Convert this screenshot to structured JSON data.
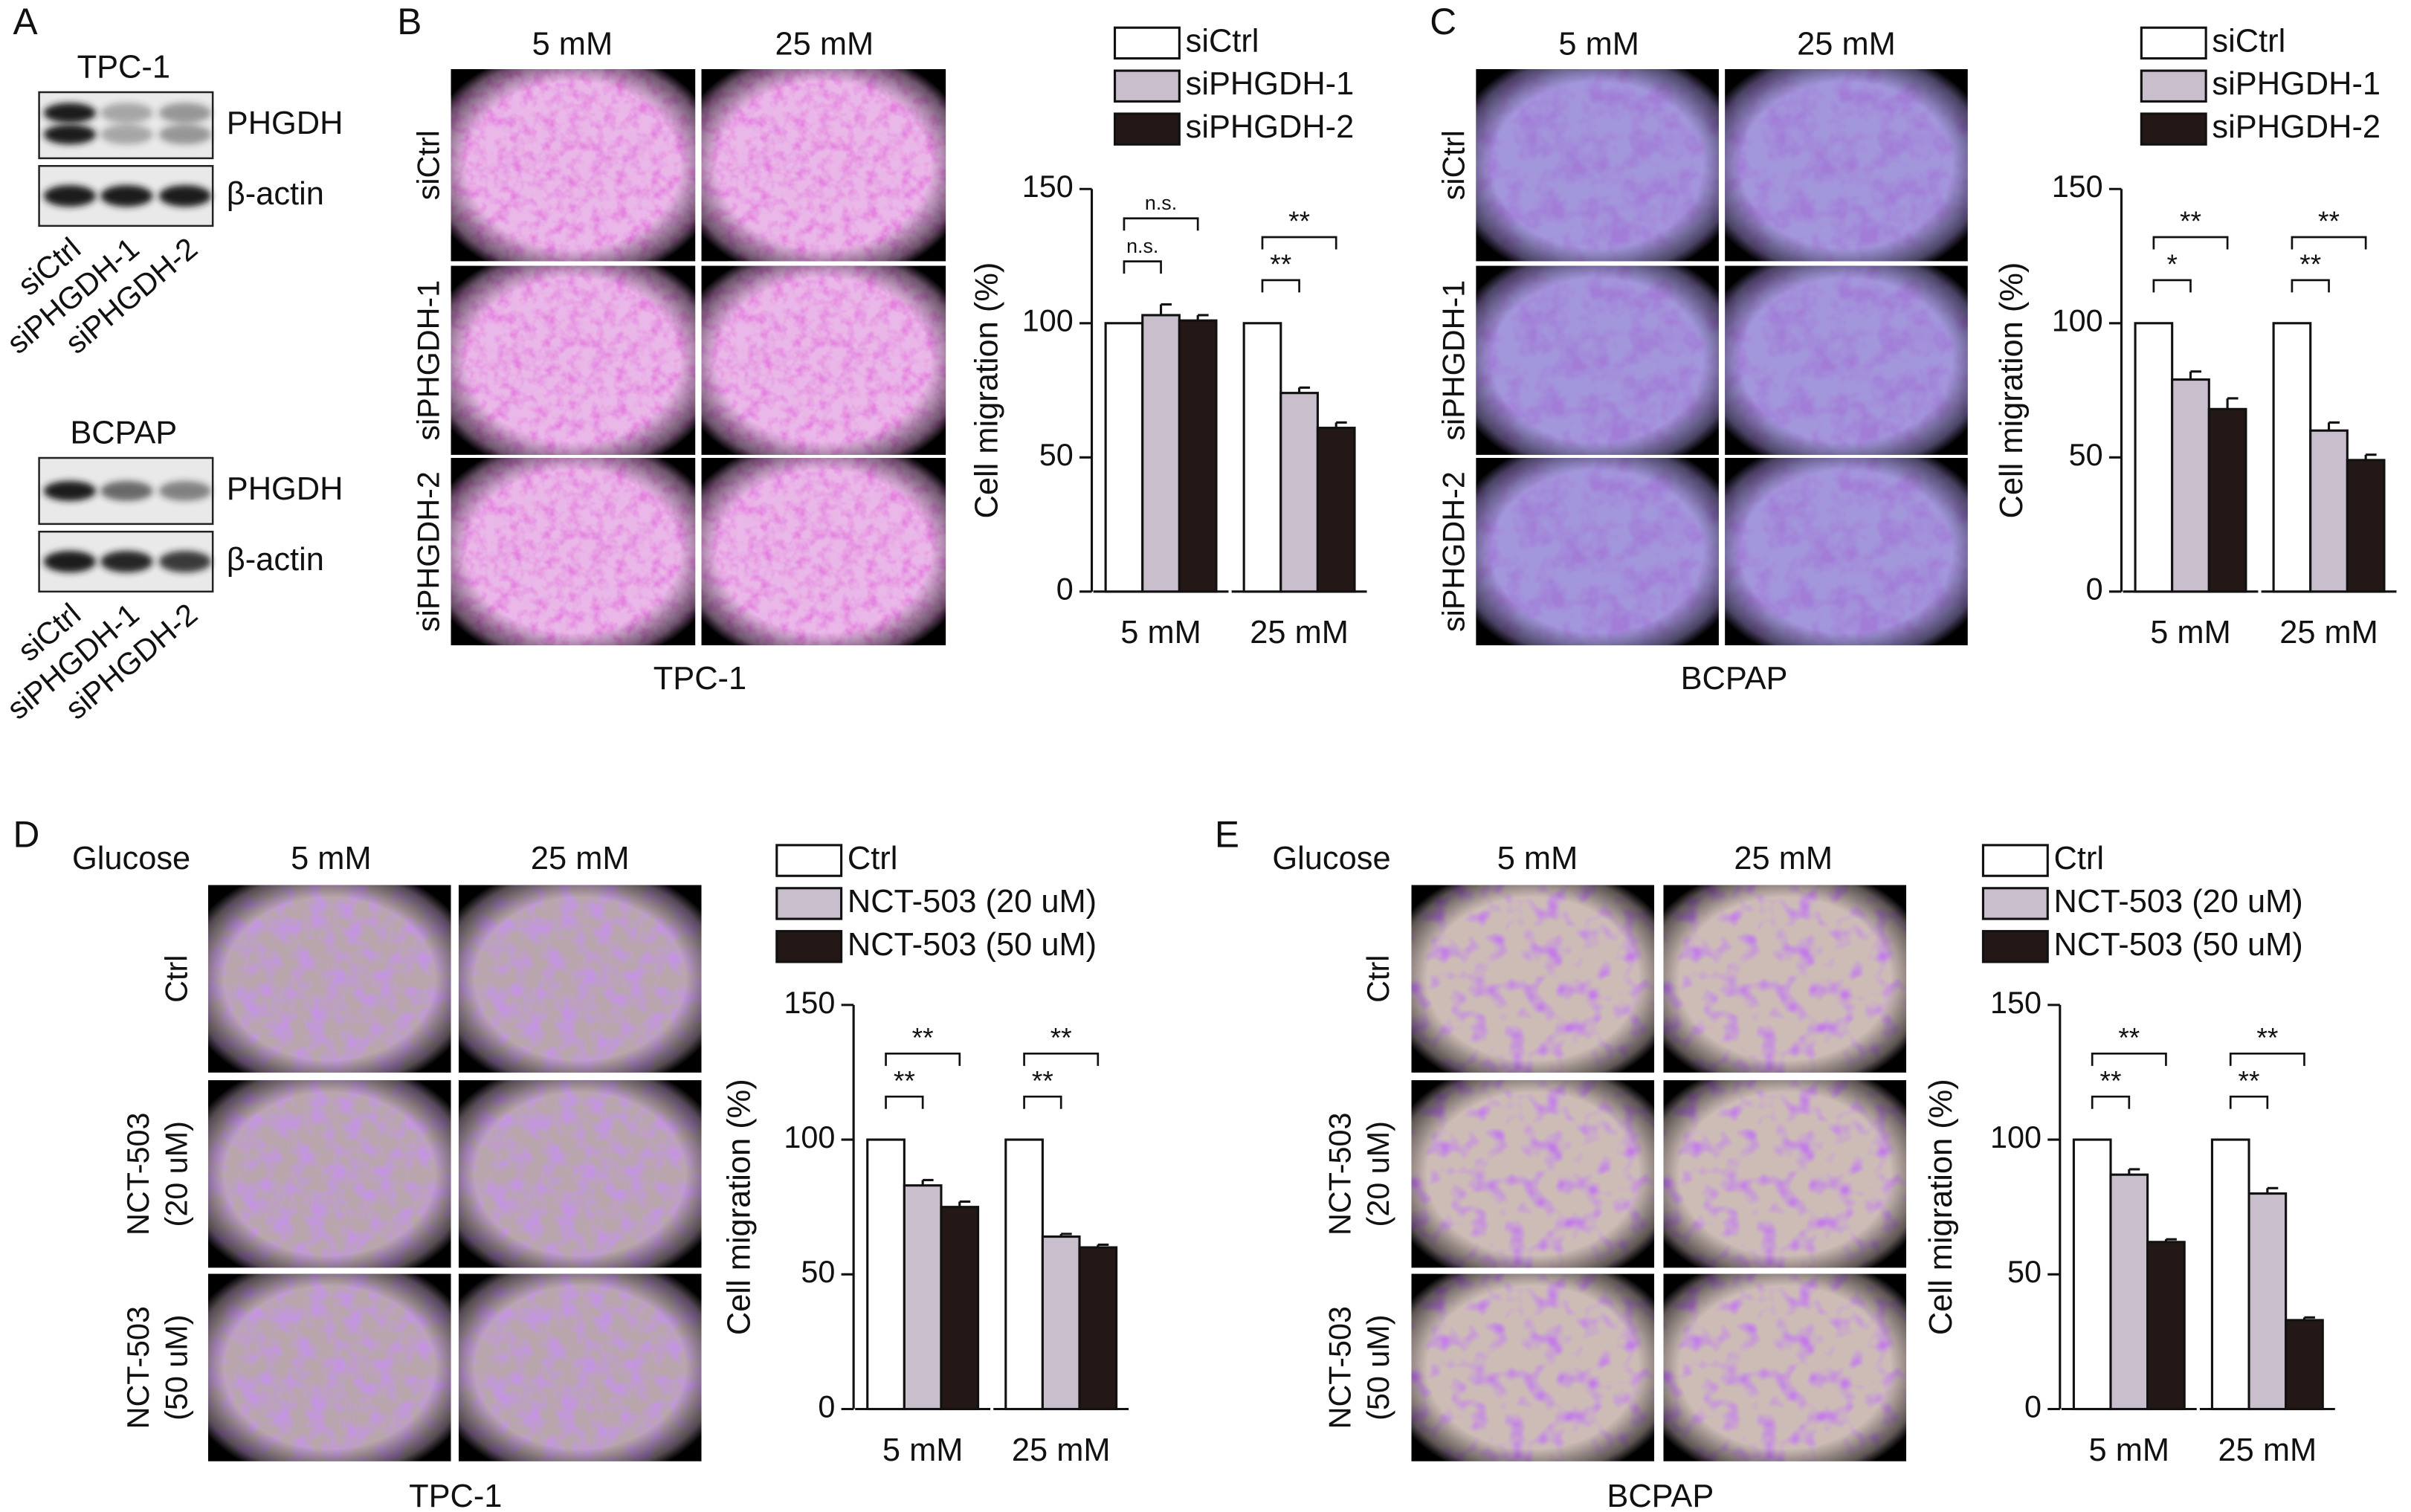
{
  "panels": {
    "A": {
      "letter": "A",
      "blots": [
        {
          "cell_line": "TPC-1",
          "bands": [
            "PHGDH",
            "β-actin"
          ],
          "lanes": [
            "siCtrl",
            "siPHGDH-1",
            "siPHGDH-2"
          ]
        },
        {
          "cell_line": "BCPAP",
          "bands": [
            "PHGDH",
            "β-actin"
          ],
          "lanes": [
            "siCtrl",
            "siPHGDH-1",
            "siPHGDH-2"
          ]
        }
      ]
    },
    "B": {
      "letter": "B",
      "columns": [
        "5 mM",
        "25 mM"
      ],
      "rows": [
        [
          "siCtrl"
        ],
        [
          "siPHGDH-1"
        ],
        [
          "siPHGDH-2"
        ]
      ],
      "caption": "TPC-1"
    },
    "C": {
      "letter": "C",
      "columns": [
        "5 mM",
        "25 mM"
      ],
      "rows": [
        [
          "siCtrl"
        ],
        [
          "siPHGDH-1"
        ],
        [
          "siPHGDH-2"
        ]
      ],
      "caption": "BCPAP"
    },
    "D": {
      "letter": "D",
      "header": "Glucose",
      "columns": [
        "5 mM",
        "25 mM"
      ],
      "rows": [
        [
          "Ctrl"
        ],
        [
          "NCT-503",
          "(20 uM)"
        ],
        [
          "NCT-503",
          "(50 uM)"
        ]
      ],
      "caption": "TPC-1"
    },
    "E": {
      "letter": "E",
      "header": "Glucose",
      "columns": [
        "5 mM",
        "25 mM"
      ],
      "rows": [
        [
          "Ctrl"
        ],
        [
          "NCT-503",
          "(20 uM)"
        ],
        [
          "NCT-503",
          "(50 uM)"
        ]
      ],
      "caption": "BCPAP"
    }
  },
  "chart_data": [
    {
      "type": "bar",
      "y_label": "Cell migration (%)",
      "categories": [
        "5 mM",
        "25 mM"
      ],
      "series": [
        {
          "name": "siCtrl",
          "color": "#ffffff",
          "values": [
            100,
            100
          ]
        },
        {
          "name": "siPHGDH-1",
          "color": "#c9bfcc",
          "values": [
            103,
            74
          ],
          "errors": [
            4,
            2
          ]
        },
        {
          "name": "siPHGDH-2",
          "color": "#231815",
          "values": [
            101,
            61
          ],
          "errors": [
            2,
            2
          ]
        }
      ],
      "significance": [
        [
          "n.s.",
          "n.s."
        ],
        [
          "**",
          "**"
        ]
      ],
      "ylim": [
        0,
        150
      ],
      "yticks": [
        0,
        50,
        100,
        150
      ]
    },
    {
      "type": "bar",
      "y_label": "Cell migration (%)",
      "categories": [
        "5 mM",
        "25 mM"
      ],
      "series": [
        {
          "name": "siCtrl",
          "color": "#ffffff",
          "values": [
            100,
            100
          ]
        },
        {
          "name": "siPHGDH-1",
          "color": "#c9bfcc",
          "values": [
            79,
            60
          ],
          "errors": [
            3,
            3
          ]
        },
        {
          "name": "siPHGDH-2",
          "color": "#231815",
          "values": [
            68,
            49
          ],
          "errors": [
            4,
            2
          ]
        }
      ],
      "significance": [
        [
          "*",
          "**"
        ],
        [
          "**",
          "**"
        ]
      ],
      "ylim": [
        0,
        150
      ],
      "yticks": [
        0,
        50,
        100,
        150
      ]
    },
    {
      "type": "bar",
      "y_label": "Cell migration (%)",
      "categories": [
        "5 mM",
        "25 mM"
      ],
      "series": [
        {
          "name": "Ctrl",
          "color": "#ffffff",
          "values": [
            100,
            100
          ]
        },
        {
          "name": "NCT-503 (20 uM)",
          "color": "#c9bfcc",
          "values": [
            83,
            64
          ],
          "errors": [
            2,
            1
          ]
        },
        {
          "name": "NCT-503 (50 uM)",
          "color": "#231815",
          "values": [
            75,
            60
          ],
          "errors": [
            2,
            1
          ]
        }
      ],
      "significance": [
        [
          "**",
          "**"
        ],
        [
          "**",
          "**"
        ]
      ],
      "ylim": [
        0,
        150
      ],
      "yticks": [
        0,
        50,
        100,
        150
      ]
    },
    {
      "type": "bar",
      "y_label": "Cell migration (%)",
      "categories": [
        "5 mM",
        "25 mM"
      ],
      "series": [
        {
          "name": "Ctrl",
          "color": "#ffffff",
          "values": [
            100,
            100
          ]
        },
        {
          "name": "NCT-503 (20 uM)",
          "color": "#c9bfcc",
          "values": [
            87,
            80
          ],
          "errors": [
            2,
            2
          ]
        },
        {
          "name": "NCT-503 (50 uM)",
          "color": "#231815",
          "values": [
            62,
            33
          ],
          "errors": [
            1,
            1
          ]
        }
      ],
      "significance": [
        [
          "**",
          "**"
        ],
        [
          "**",
          "**"
        ]
      ],
      "ylim": [
        0,
        150
      ],
      "yticks": [
        0,
        50,
        100,
        150
      ]
    }
  ]
}
